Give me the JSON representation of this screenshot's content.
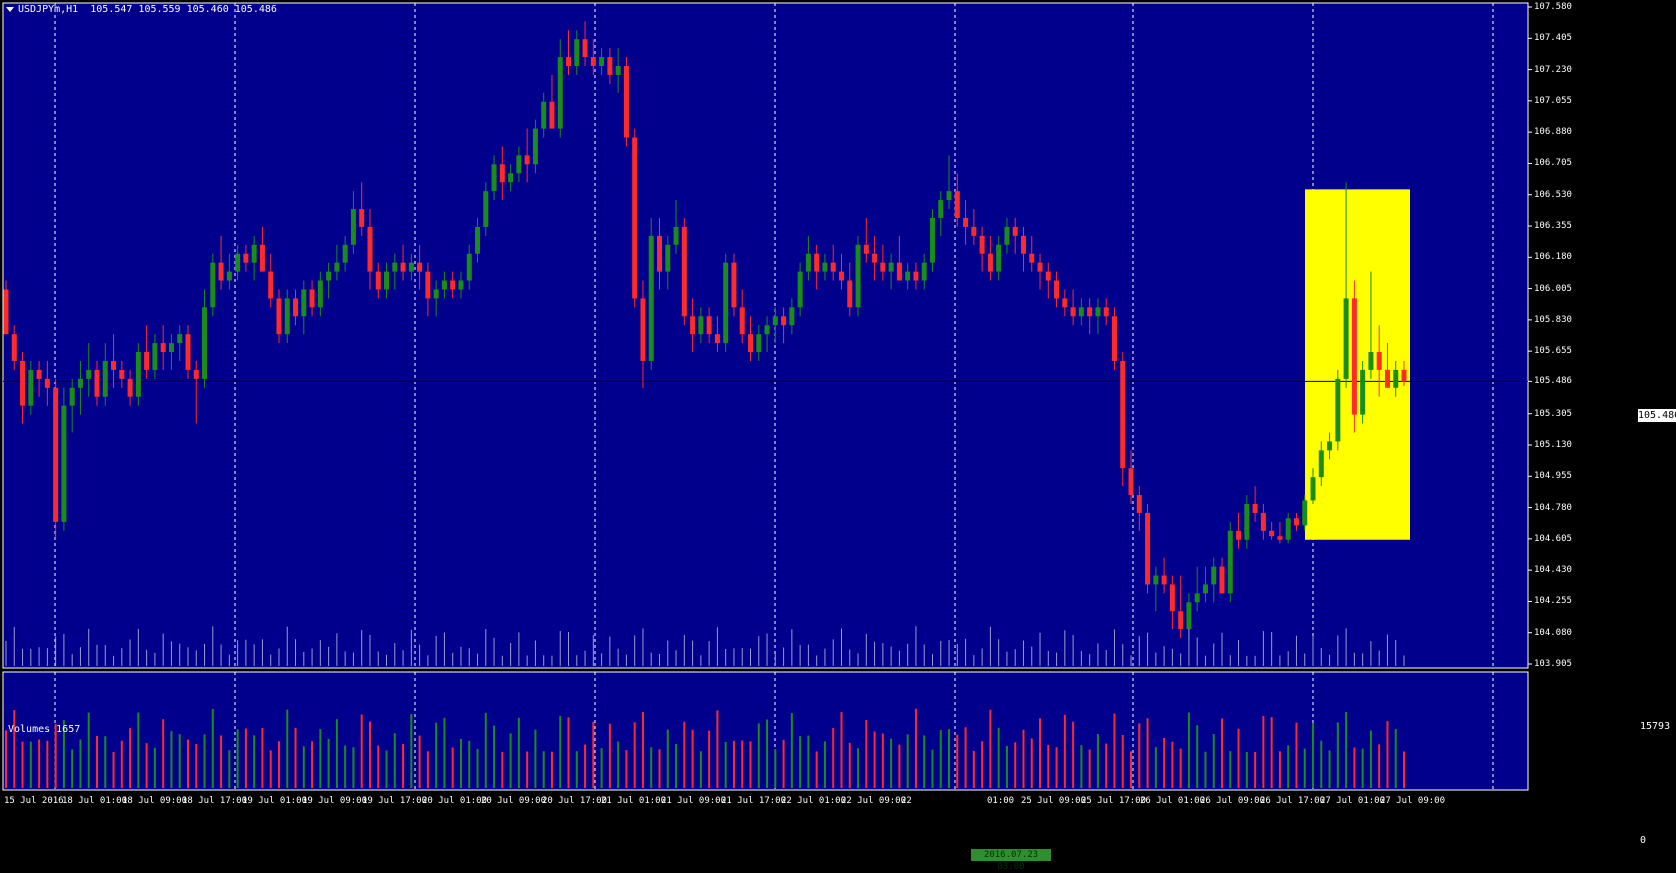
{
  "header": {
    "symbol": "USDJPYm,H1",
    "ohlc": "105.547 105.559 105.460 105.486"
  },
  "volume_pane": {
    "title": "Volumes 1657",
    "max_label": "15793",
    "zero_label": "0"
  },
  "current_price": "105.486",
  "crosshair_time": "2016.07.23 03:00",
  "colors": {
    "background": "#00008c",
    "bull": "#1a8c1a",
    "bear": "#ff2a2a",
    "grid": "#ffffff",
    "highlight": "#ffff00",
    "axis": "#ffffff"
  },
  "price_axis_labels": [
    "107.580",
    "107.405",
    "107.230",
    "107.055",
    "106.880",
    "106.705",
    "106.530",
    "106.355",
    "106.180",
    "106.005",
    "105.830",
    "105.655",
    "105.486",
    "105.305",
    "105.130",
    "104.955",
    "104.780",
    "104.605",
    "104.430",
    "104.255",
    "104.080",
    "103.905"
  ],
  "time_axis_labels": [
    "15 Jul 2016",
    "18 Jul 01:00",
    "18 Jul 09:00",
    "18 Jul 17:00",
    "19 Jul 01:00",
    "19 Jul 09:00",
    "19 Jul 17:00",
    "20 Jul 01:00",
    "20 Jul 09:00",
    "20 Jul 17:00",
    "21 Jul 01:00",
    "21 Jul 09:00",
    "21 Jul 17:00",
    "22 Jul 01:00",
    "22 Jul 09:00",
    "22",
    "01:00",
    "25 Jul 09:00",
    "25 Jul 17:00",
    "26 Jul 01:00",
    "26 Jul 09:00",
    "26 Jul 17:00",
    "27 Jul 01:00",
    "27 Jul 09:00"
  ],
  "chart_data": {
    "type": "candlestick",
    "symbol": "USDJPYm",
    "timeframe": "H1",
    "ylim": [
      103.905,
      107.58
    ],
    "candles": [
      [
        106.0,
        106.05,
        105.75,
        105.75
      ],
      [
        105.75,
        105.8,
        105.55,
        105.6
      ],
      [
        105.6,
        105.65,
        105.25,
        105.35
      ],
      [
        105.35,
        105.6,
        105.3,
        105.55
      ],
      [
        105.55,
        105.6,
        105.4,
        105.5
      ],
      [
        105.5,
        105.6,
        105.35,
        105.45
      ],
      [
        105.45,
        105.5,
        104.6,
        104.7
      ],
      [
        104.7,
        105.45,
        104.65,
        105.35
      ],
      [
        105.35,
        105.5,
        105.2,
        105.45
      ],
      [
        105.45,
        105.6,
        105.3,
        105.5
      ],
      [
        105.5,
        105.7,
        105.4,
        105.55
      ],
      [
        105.55,
        105.6,
        105.35,
        105.4
      ],
      [
        105.4,
        105.7,
        105.35,
        105.6
      ],
      [
        105.6,
        105.75,
        105.45,
        105.55
      ],
      [
        105.55,
        105.6,
        105.45,
        105.5
      ],
      [
        105.5,
        105.55,
        105.35,
        105.4
      ],
      [
        105.4,
        105.7,
        105.35,
        105.65
      ],
      [
        105.65,
        105.8,
        105.5,
        105.55
      ],
      [
        105.55,
        105.75,
        105.5,
        105.7
      ],
      [
        105.7,
        105.8,
        105.55,
        105.65
      ],
      [
        105.65,
        105.75,
        105.55,
        105.7
      ],
      [
        105.7,
        105.8,
        105.6,
        105.75
      ],
      [
        105.75,
        105.8,
        105.5,
        105.55
      ],
      [
        105.55,
        105.6,
        105.25,
        105.5
      ],
      [
        105.5,
        106.0,
        105.45,
        105.9
      ],
      [
        105.9,
        106.2,
        105.85,
        106.15
      ],
      [
        106.15,
        106.3,
        106.0,
        106.05
      ],
      [
        106.05,
        106.2,
        106.0,
        106.1
      ],
      [
        106.1,
        106.25,
        106.05,
        106.2
      ],
      [
        106.2,
        106.25,
        106.1,
        106.15
      ],
      [
        106.15,
        106.3,
        106.05,
        106.25
      ],
      [
        106.25,
        106.35,
        106.1,
        106.1
      ],
      [
        106.1,
        106.2,
        105.9,
        105.95
      ],
      [
        105.95,
        106.0,
        105.7,
        105.75
      ],
      [
        105.75,
        106.0,
        105.7,
        105.95
      ],
      [
        105.95,
        106.0,
        105.8,
        105.85
      ],
      [
        105.85,
        106.05,
        105.75,
        106.0
      ],
      [
        106.0,
        106.05,
        105.85,
        105.9
      ],
      [
        105.9,
        106.1,
        105.85,
        106.05
      ],
      [
        106.05,
        106.15,
        105.95,
        106.1
      ],
      [
        106.1,
        106.25,
        106.05,
        106.15
      ],
      [
        106.15,
        106.3,
        106.1,
        106.25
      ],
      [
        106.25,
        106.55,
        106.2,
        106.45
      ],
      [
        106.45,
        106.6,
        106.3,
        106.35
      ],
      [
        106.35,
        106.45,
        106.0,
        106.1
      ],
      [
        106.1,
        106.15,
        105.95,
        106.0
      ],
      [
        106.0,
        106.15,
        105.95,
        106.1
      ],
      [
        106.1,
        106.2,
        106.0,
        106.15
      ],
      [
        106.15,
        106.25,
        106.05,
        106.1
      ],
      [
        106.1,
        106.2,
        106.05,
        106.15
      ],
      [
        106.15,
        106.25,
        106.0,
        106.1
      ],
      [
        106.1,
        106.15,
        105.85,
        105.95
      ],
      [
        105.95,
        106.05,
        105.85,
        106.0
      ],
      [
        106.0,
        106.1,
        105.95,
        106.05
      ],
      [
        106.05,
        106.1,
        105.95,
        106.0
      ],
      [
        106.0,
        106.1,
        105.95,
        106.05
      ],
      [
        106.05,
        106.25,
        106.0,
        106.2
      ],
      [
        106.2,
        106.4,
        106.15,
        106.35
      ],
      [
        106.35,
        106.6,
        106.3,
        106.55
      ],
      [
        106.55,
        106.75,
        106.5,
        106.7
      ],
      [
        106.7,
        106.8,
        106.5,
        106.6
      ],
      [
        106.6,
        106.7,
        106.55,
        106.65
      ],
      [
        106.65,
        106.8,
        106.6,
        106.75
      ],
      [
        106.75,
        106.9,
        106.6,
        106.7
      ],
      [
        106.7,
        106.95,
        106.65,
        106.9
      ],
      [
        106.9,
        107.1,
        106.85,
        107.05
      ],
      [
        107.05,
        107.2,
        106.9,
        106.9
      ],
      [
        106.9,
        107.4,
        106.85,
        107.3
      ],
      [
        107.3,
        107.45,
        107.2,
        107.25
      ],
      [
        107.25,
        107.45,
        107.2,
        107.4
      ],
      [
        107.4,
        107.5,
        107.25,
        107.3
      ],
      [
        107.3,
        107.4,
        107.2,
        107.25
      ],
      [
        107.25,
        107.35,
        107.2,
        107.3
      ],
      [
        107.3,
        107.35,
        107.15,
        107.2
      ],
      [
        107.2,
        107.35,
        107.1,
        107.25
      ],
      [
        107.25,
        107.3,
        106.8,
        106.85
      ],
      [
        106.85,
        106.9,
        105.9,
        105.95
      ],
      [
        105.95,
        106.05,
        105.45,
        105.6
      ],
      [
        105.6,
        106.4,
        105.55,
        106.3
      ],
      [
        106.3,
        106.4,
        106.0,
        106.1
      ],
      [
        106.1,
        106.3,
        106.0,
        106.25
      ],
      [
        106.25,
        106.5,
        106.2,
        106.35
      ],
      [
        106.35,
        106.4,
        105.8,
        105.85
      ],
      [
        105.85,
        105.95,
        105.65,
        105.75
      ],
      [
        105.75,
        105.9,
        105.7,
        105.85
      ],
      [
        105.85,
        105.9,
        105.7,
        105.75
      ],
      [
        105.75,
        105.85,
        105.65,
        105.7
      ],
      [
        105.7,
        106.2,
        105.65,
        106.15
      ],
      [
        106.15,
        106.2,
        105.85,
        105.9
      ],
      [
        105.9,
        106.0,
        105.7,
        105.75
      ],
      [
        105.75,
        105.85,
        105.6,
        105.65
      ],
      [
        105.65,
        105.8,
        105.6,
        105.75
      ],
      [
        105.75,
        105.85,
        105.65,
        105.8
      ],
      [
        105.8,
        105.9,
        105.7,
        105.85
      ],
      [
        105.85,
        105.9,
        105.7,
        105.8
      ],
      [
        105.8,
        105.95,
        105.75,
        105.9
      ],
      [
        105.9,
        106.15,
        105.85,
        106.1
      ],
      [
        106.1,
        106.3,
        106.05,
        106.2
      ],
      [
        106.2,
        106.25,
        106.0,
        106.1
      ],
      [
        106.1,
        106.2,
        106.05,
        106.15
      ],
      [
        106.15,
        106.25,
        106.05,
        106.1
      ],
      [
        106.1,
        106.2,
        106.0,
        106.05
      ],
      [
        106.05,
        106.15,
        105.85,
        105.9
      ],
      [
        105.9,
        106.3,
        105.85,
        106.25
      ],
      [
        106.25,
        106.4,
        106.15,
        106.2
      ],
      [
        106.2,
        106.3,
        106.05,
        106.15
      ],
      [
        106.15,
        106.25,
        106.05,
        106.1
      ],
      [
        106.1,
        106.2,
        106.0,
        106.15
      ],
      [
        106.15,
        106.3,
        106.05,
        106.05
      ],
      [
        106.05,
        106.15,
        106.0,
        106.1
      ],
      [
        106.1,
        106.15,
        106.0,
        106.05
      ],
      [
        106.05,
        106.2,
        106.0,
        106.15
      ],
      [
        106.15,
        106.45,
        106.1,
        106.4
      ],
      [
        106.4,
        106.55,
        106.3,
        106.5
      ],
      [
        106.5,
        106.75,
        106.45,
        106.55
      ],
      [
        106.55,
        106.65,
        106.35,
        106.4
      ],
      [
        106.4,
        106.5,
        106.25,
        106.35
      ],
      [
        106.35,
        106.45,
        106.25,
        106.3
      ],
      [
        106.3,
        106.35,
        106.1,
        106.2
      ],
      [
        106.2,
        106.3,
        106.05,
        106.1
      ],
      [
        106.1,
        106.3,
        106.05,
        106.25
      ],
      [
        106.25,
        106.4,
        106.2,
        106.35
      ],
      [
        106.35,
        106.4,
        106.2,
        106.3
      ],
      [
        106.3,
        106.35,
        106.1,
        106.2
      ],
      [
        106.2,
        106.3,
        106.1,
        106.15
      ],
      [
        106.15,
        106.2,
        106.0,
        106.1
      ],
      [
        106.1,
        106.15,
        105.95,
        106.05
      ],
      [
        106.05,
        106.1,
        105.9,
        105.95
      ],
      [
        105.95,
        106.0,
        105.85,
        105.9
      ],
      [
        105.9,
        106.0,
        105.8,
        105.85
      ],
      [
        105.85,
        105.95,
        105.8,
        105.9
      ],
      [
        105.9,
        105.95,
        105.75,
        105.85
      ],
      [
        105.85,
        105.95,
        105.75,
        105.9
      ],
      [
        105.9,
        105.95,
        105.8,
        105.85
      ],
      [
        105.85,
        105.9,
        105.55,
        105.6
      ],
      [
        105.6,
        105.65,
        104.9,
        105.0
      ],
      [
        105.0,
        105.1,
        104.8,
        104.85
      ],
      [
        104.85,
        104.9,
        104.65,
        104.75
      ],
      [
        104.75,
        104.8,
        104.3,
        104.35
      ],
      [
        104.35,
        104.45,
        104.2,
        104.4
      ],
      [
        104.4,
        104.5,
        104.3,
        104.35
      ],
      [
        104.35,
        104.4,
        104.1,
        104.2
      ],
      [
        104.2,
        104.4,
        104.05,
        104.1
      ],
      [
        104.1,
        104.3,
        104.05,
        104.25
      ],
      [
        104.25,
        104.45,
        104.2,
        104.3
      ],
      [
        104.3,
        104.45,
        104.25,
        104.35
      ],
      [
        104.35,
        104.5,
        104.25,
        104.45
      ],
      [
        104.45,
        104.5,
        104.3,
        104.3
      ],
      [
        104.3,
        104.7,
        104.25,
        104.65
      ],
      [
        104.65,
        104.75,
        104.55,
        104.6
      ],
      [
        104.6,
        104.85,
        104.55,
        104.8
      ],
      [
        104.8,
        104.9,
        104.7,
        104.75
      ],
      [
        104.75,
        104.8,
        104.6,
        104.65
      ],
      [
        104.65,
        104.7,
        104.6,
        104.62
      ],
      [
        104.62,
        104.7,
        104.58,
        104.6
      ],
      [
        104.6,
        104.75,
        104.58,
        104.72
      ],
      [
        104.72,
        104.75,
        104.65,
        104.68
      ],
      [
        104.68,
        104.85,
        104.65,
        104.82
      ],
      [
        104.82,
        105.0,
        104.8,
        104.95
      ],
      [
        104.95,
        105.15,
        104.9,
        105.1
      ],
      [
        105.1,
        105.2,
        105.05,
        105.15
      ],
      [
        105.15,
        105.55,
        105.1,
        105.5
      ],
      [
        105.5,
        106.6,
        105.45,
        105.95
      ],
      [
        105.95,
        106.05,
        105.2,
        105.3
      ],
      [
        105.3,
        105.6,
        105.25,
        105.55
      ],
      [
        105.55,
        106.1,
        105.5,
        105.65
      ],
      [
        105.65,
        105.8,
        105.4,
        105.55
      ],
      [
        105.55,
        105.7,
        105.45,
        105.45
      ],
      [
        105.45,
        105.6,
        105.4,
        105.55
      ],
      [
        105.55,
        105.6,
        105.46,
        105.486
      ]
    ],
    "volume_ylim": [
      0,
      15793
    ]
  }
}
